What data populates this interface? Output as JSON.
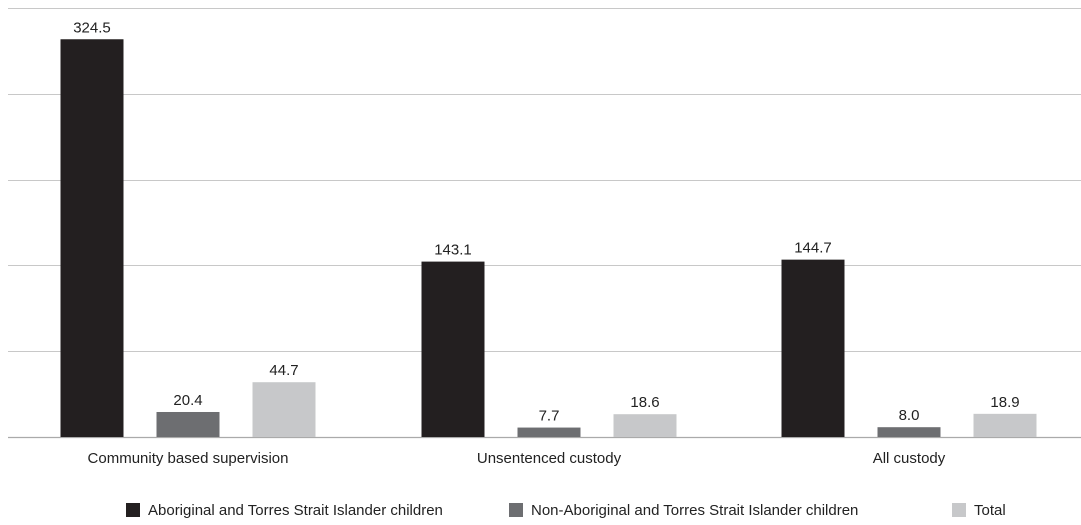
{
  "chart_data": {
    "type": "bar",
    "title": "",
    "xlabel": "",
    "ylabel": "",
    "categories": [
      "Community based supervision",
      "Unsentenced custody",
      "All custody"
    ],
    "series": [
      {
        "name": "Aboriginal and Torres Strait Islander children",
        "color": "#231f20",
        "values": [
          324.5,
          143.1,
          144.7
        ]
      },
      {
        "name": "Non-Aboriginal and Torres Strait Islander children",
        "color": "#6d6e71",
        "values": [
          20.4,
          7.7,
          8.0
        ]
      },
      {
        "name": "Total",
        "color": "#c7c8ca",
        "values": [
          44.7,
          18.6,
          18.9
        ]
      }
    ],
    "ylim": [
      0,
      350
    ],
    "gridline_step": 70,
    "grid": true,
    "legend_position": "bottom"
  }
}
